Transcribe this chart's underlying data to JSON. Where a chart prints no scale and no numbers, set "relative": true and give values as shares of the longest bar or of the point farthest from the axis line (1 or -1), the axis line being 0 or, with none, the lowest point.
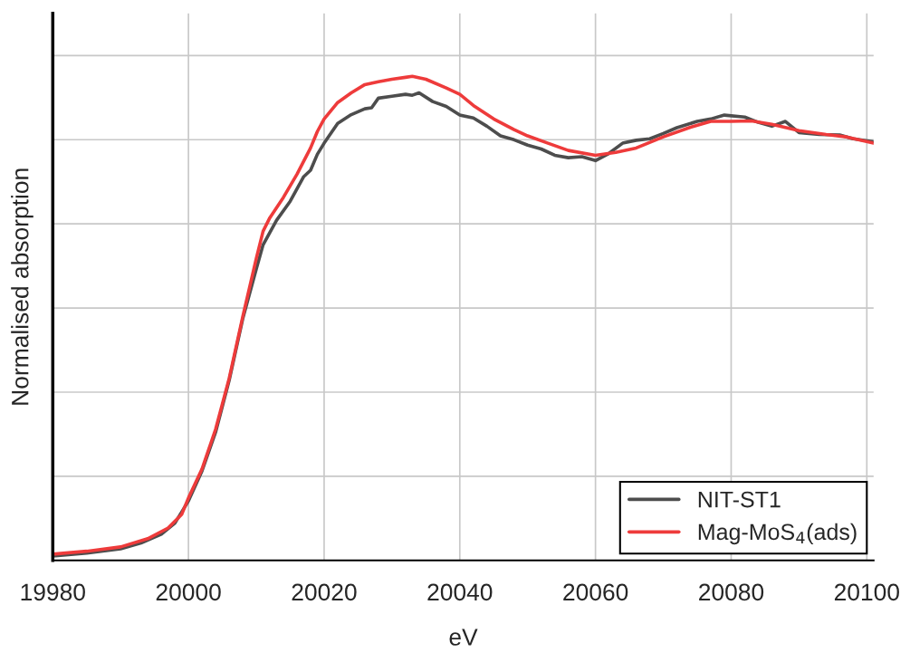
{
  "chart_data": {
    "type": "line",
    "relative": true,
    "xlabel": "eV",
    "ylabel": "Normalised absorption",
    "xlim": [
      19980,
      20101
    ],
    "xticks": [
      19980,
      20000,
      20020,
      20040,
      20060,
      20080,
      20100
    ],
    "grid": true,
    "legend": "bottom right",
    "marker": "none",
    "line_style": "solid",
    "series": [
      {
        "name": "NIT-ST1",
        "color": "#4d4d4d",
        "x": [
          19980,
          19985,
          19990,
          19993,
          19996,
          19998,
          20000,
          20002,
          20004,
          20006,
          20008,
          20010,
          20011,
          20013,
          20015,
          20017,
          20018,
          20019,
          20020,
          20022,
          20024,
          20026,
          20027,
          20028,
          20030,
          20032,
          20033,
          20034,
          20036,
          20038,
          20040,
          20042,
          20044,
          20046,
          20048,
          20050,
          20052,
          20054,
          20056,
          20058,
          20060,
          20062,
          20064,
          20066,
          20068,
          20070,
          20072,
          20075,
          20077,
          20079,
          20082,
          20084,
          20086,
          20088,
          20090,
          20093,
          20096,
          20098,
          20101
        ],
        "values": [
          0.009,
          0.015,
          0.024,
          0.036,
          0.054,
          0.077,
          0.123,
          0.185,
          0.265,
          0.372,
          0.499,
          0.602,
          0.652,
          0.703,
          0.742,
          0.793,
          0.806,
          0.839,
          0.862,
          0.903,
          0.921,
          0.933,
          0.935,
          0.955,
          0.959,
          0.963,
          0.961,
          0.966,
          0.948,
          0.938,
          0.92,
          0.914,
          0.897,
          0.877,
          0.869,
          0.858,
          0.85,
          0.837,
          0.832,
          0.834,
          0.826,
          0.841,
          0.862,
          0.868,
          0.871,
          0.882,
          0.894,
          0.907,
          0.912,
          0.92,
          0.916,
          0.905,
          0.897,
          0.907,
          0.884,
          0.88,
          0.879,
          0.871,
          0.865
        ]
      },
      {
        "name": "Mag-MoS$_{4}$(ads)",
        "color": "#ee3b3b",
        "x": [
          19980,
          19985,
          19990,
          19994,
          19997,
          19999,
          20000,
          20002,
          20004,
          20006,
          20008,
          20010,
          20011,
          20012,
          20014,
          20016,
          20018,
          20019,
          20020,
          20022,
          20024,
          20026,
          20028,
          20030,
          20032,
          20033,
          20035,
          20038,
          20040,
          20042,
          20045,
          20048,
          20050,
          20053,
          20056,
          20060,
          20063,
          20066,
          20070,
          20074,
          20077,
          20080,
          20083,
          20086,
          20090,
          20094,
          20097,
          20101
        ],
        "values": [
          0.013,
          0.019,
          0.028,
          0.045,
          0.067,
          0.095,
          0.129,
          0.189,
          0.271,
          0.376,
          0.503,
          0.624,
          0.68,
          0.708,
          0.75,
          0.798,
          0.852,
          0.886,
          0.912,
          0.946,
          0.966,
          0.983,
          0.989,
          0.994,
          0.998,
          1.0,
          0.994,
          0.976,
          0.963,
          0.94,
          0.912,
          0.89,
          0.877,
          0.862,
          0.847,
          0.837,
          0.843,
          0.852,
          0.875,
          0.895,
          0.907,
          0.907,
          0.908,
          0.901,
          0.888,
          0.88,
          0.875,
          0.862
        ]
      }
    ]
  }
}
